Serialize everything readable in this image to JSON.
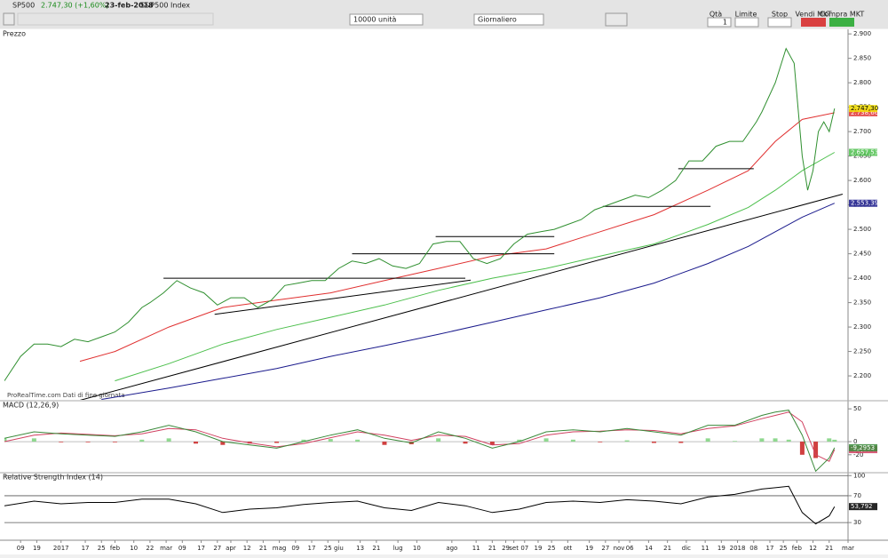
{
  "toolbar": {
    "symbol": "SP500",
    "last": "2.747,30 (+1,60%)",
    "date": "23-feb-2018",
    "name": "S&P500 Index",
    "units": "10000 unità",
    "period": "Giornaliero",
    "qty_label": "Qtà",
    "qty": "1",
    "limit": "Limite",
    "stop": "Stop",
    "sell": "Vendi MKT",
    "buy": "Compra MKT"
  },
  "chart_data": [
    {
      "type": "line",
      "title": "Prezzo",
      "source": "ProRealTime.com  Dati di fine giornata",
      "xlim": [
        -21,
        292
      ],
      "xticks": [
        {
          "value": -15,
          "label": "09"
        },
        {
          "value": -9,
          "label": "19"
        },
        {
          "value": 0,
          "label": "2017"
        },
        {
          "value": 9,
          "label": "17"
        },
        {
          "value": 15,
          "label": "25"
        },
        {
          "value": 20,
          "label": "feb"
        },
        {
          "value": 27,
          "label": "10"
        },
        {
          "value": 33,
          "label": "22"
        },
        {
          "value": 39,
          "label": "mar"
        },
        {
          "value": 45,
          "label": "09"
        },
        {
          "value": 52,
          "label": "17"
        },
        {
          "value": 58,
          "label": "27"
        },
        {
          "value": 63,
          "label": "apr"
        },
        {
          "value": 69,
          "label": "12"
        },
        {
          "value": 75,
          "label": "21"
        },
        {
          "value": 81,
          "label": "mag"
        },
        {
          "value": 87,
          "label": "09"
        },
        {
          "value": 93,
          "label": "17"
        },
        {
          "value": 99,
          "label": "25"
        },
        {
          "value": 103,
          "label": "giu"
        },
        {
          "value": 111,
          "label": "13"
        },
        {
          "value": 117,
          "label": "21"
        },
        {
          "value": 125,
          "label": "lug"
        },
        {
          "value": 132,
          "label": "10"
        },
        {
          "value": 145,
          "label": "ago"
        },
        {
          "value": 154,
          "label": "11"
        },
        {
          "value": 160,
          "label": "21"
        },
        {
          "value": 165,
          "label": "29"
        },
        {
          "value": 168,
          "label": "set"
        },
        {
          "value": 172,
          "label": "07"
        },
        {
          "value": 177,
          "label": "19"
        },
        {
          "value": 182,
          "label": "25"
        },
        {
          "value": 188,
          "label": "ott"
        },
        {
          "value": 196,
          "label": "19"
        },
        {
          "value": 202,
          "label": "27"
        },
        {
          "value": 207,
          "label": "nov"
        },
        {
          "value": 211,
          "label": "06"
        },
        {
          "value": 218,
          "label": "14"
        },
        {
          "value": 225,
          "label": "21"
        },
        {
          "value": 232,
          "label": "dic"
        },
        {
          "value": 239,
          "label": "11"
        },
        {
          "value": 245,
          "label": "19"
        },
        {
          "value": 251,
          "label": "2018"
        },
        {
          "value": 257,
          "label": "08"
        },
        {
          "value": 263,
          "label": "17"
        },
        {
          "value": 268,
          "label": "25"
        },
        {
          "value": 273,
          "label": "feb"
        },
        {
          "value": 279,
          "label": "12"
        },
        {
          "value": 285,
          "label": "21"
        },
        {
          "value": 292,
          "label": "mar"
        }
      ],
      "ylim": [
        2151,
        2893
      ],
      "yticks": [
        {
          "value": 2900,
          "label": "2.900"
        },
        {
          "value": 2850,
          "label": "2.850"
        },
        {
          "value": 2800,
          "label": "2.800"
        },
        {
          "value": 2750,
          "label": "2.750"
        },
        {
          "value": 2700,
          "label": "2.700"
        },
        {
          "value": 2650,
          "label": "2.650"
        },
        {
          "value": 2600,
          "label": "2.600"
        },
        {
          "value": 2550,
          "label": "2.550"
        },
        {
          "value": 2500,
          "label": "2.500"
        },
        {
          "value": 2450,
          "label": "2.450"
        },
        {
          "value": 2400,
          "label": "2.400"
        },
        {
          "value": 2350,
          "label": "2.350"
        },
        {
          "value": 2300,
          "label": "2.300"
        },
        {
          "value": 2250,
          "label": "2.250"
        },
        {
          "value": 2200,
          "label": "2.200"
        }
      ],
      "series": [
        {
          "color": "#1a1a8c",
          "x": [
            15,
            40,
            60,
            80,
            100,
            120,
            140,
            160,
            180,
            200,
            220,
            240,
            255,
            265,
            275,
            287
          ],
          "values": [
            2152,
            2175,
            2195,
            2215,
            2240,
            2262,
            2285,
            2310,
            2335,
            2360,
            2390,
            2430,
            2465,
            2495,
            2525,
            2553.39
          ],
          "last_label": "2.553,39"
        },
        {
          "color": "#4cbf4c",
          "x": [
            20,
            40,
            60,
            80,
            100,
            120,
            140,
            160,
            180,
            200,
            220,
            240,
            255,
            265,
            275,
            287
          ],
          "values": [
            2190,
            2225,
            2265,
            2295,
            2320,
            2345,
            2375,
            2400,
            2420,
            2445,
            2470,
            2510,
            2545,
            2580,
            2620,
            2657.53
          ],
          "last_label": "2.657,53"
        },
        {
          "color": "#e03030",
          "x": [
            7,
            20,
            40,
            60,
            80,
            100,
            120,
            140,
            160,
            180,
            200,
            220,
            240,
            255,
            265,
            275,
            287
          ],
          "values": [
            2230,
            2250,
            2300,
            2340,
            2355,
            2370,
            2395,
            2420,
            2445,
            2460,
            2495,
            2530,
            2580,
            2620,
            2680,
            2725,
            2738.66
          ],
          "last_label": "2.738,66"
        },
        {
          "color": "#000000",
          "x": [
            7,
            290
          ],
          "values": [
            2150,
            2572
          ]
        },
        {
          "color": "#000000",
          "x": [
            38,
            150
          ],
          "values": [
            2400,
            2400
          ]
        },
        {
          "color": "#000000",
          "x": [
            108,
            183
          ],
          "values": [
            2450,
            2450
          ]
        },
        {
          "color": "#000000",
          "x": [
            139,
            183
          ],
          "values": [
            2485,
            2485
          ]
        },
        {
          "color": "#000000",
          "x": [
            201,
            241
          ],
          "values": [
            2547,
            2547
          ]
        },
        {
          "color": "#000000",
          "x": [
            229,
            257
          ],
          "values": [
            2624,
            2624
          ]
        },
        {
          "color": "#000000",
          "x": [
            57,
            152
          ],
          "values": [
            2326,
            2396
          ]
        },
        {
          "color": "#2f8f2f",
          "x": [
            -21,
            -15,
            -10,
            -5,
            0,
            5,
            10,
            15,
            20,
            25,
            30,
            33,
            38,
            43,
            48,
            53,
            58,
            63,
            68,
            73,
            78,
            83,
            88,
            93,
            98,
            103,
            108,
            113,
            118,
            123,
            128,
            133,
            138,
            143,
            148,
            153,
            158,
            163,
            168,
            173,
            178,
            183,
            188,
            193,
            198,
            203,
            208,
            213,
            218,
            223,
            228,
            233,
            238,
            243,
            248,
            253,
            258,
            260,
            265,
            269,
            272,
            275,
            277,
            279,
            281,
            283,
            285,
            287
          ],
          "values": [
            2190,
            2240,
            2265,
            2265,
            2260,
            2275,
            2270,
            2280,
            2290,
            2310,
            2340,
            2350,
            2370,
            2395,
            2380,
            2370,
            2345,
            2360,
            2360,
            2340,
            2355,
            2385,
            2390,
            2395,
            2395,
            2420,
            2435,
            2430,
            2440,
            2425,
            2420,
            2430,
            2470,
            2475,
            2475,
            2440,
            2430,
            2440,
            2470,
            2490,
            2495,
            2500,
            2510,
            2520,
            2540,
            2550,
            2560,
            2570,
            2565,
            2580,
            2600,
            2640,
            2640,
            2670,
            2680,
            2680,
            2720,
            2740,
            2800,
            2870,
            2840,
            2650,
            2580,
            2620,
            2700,
            2720,
            2700,
            2747.3
          ],
          "last_label": "2.747,30"
        }
      ]
    },
    {
      "type": "line",
      "title": "MACD (12,26,9)",
      "xlim": [
        -21,
        292
      ],
      "ylim": [
        -46,
        61
      ],
      "yticks": [
        50,
        0,
        -20
      ],
      "series": [
        {
          "color": "#8fd88f",
          "style": "histogram",
          "x": [
            -21,
            -10,
            0,
            10,
            20,
            30,
            40,
            50,
            60,
            70,
            80,
            90,
            100,
            110,
            120,
            130,
            140,
            150,
            160,
            170,
            180,
            190,
            200,
            210,
            220,
            230,
            240,
            250,
            260,
            265,
            270,
            275,
            280,
            285,
            287
          ],
          "values": [
            5,
            5,
            -1,
            -1,
            -1,
            3,
            5,
            -3,
            -5,
            -3,
            -2,
            3,
            4,
            3,
            -5,
            -4,
            5,
            -3,
            -5,
            3,
            5,
            3,
            -1,
            2,
            -2,
            -2,
            5,
            1,
            5,
            5,
            3,
            -20,
            -25,
            5,
            2.9
          ]
        },
        {
          "color": "#d04060",
          "x": [
            -21,
            -10,
            0,
            10,
            20,
            30,
            40,
            50,
            60,
            70,
            80,
            90,
            100,
            110,
            120,
            130,
            140,
            150,
            160,
            170,
            180,
            190,
            200,
            210,
            220,
            230,
            240,
            250,
            260,
            265,
            270,
            275,
            280,
            285,
            287
          ],
          "values": [
            0,
            10,
            13,
            11,
            9,
            12,
            20,
            18,
            5,
            -2,
            -8,
            -3,
            6,
            15,
            10,
            2,
            10,
            8,
            -5,
            -3,
            10,
            15,
            16,
            18,
            17,
            12,
            20,
            24,
            35,
            40,
            45,
            30,
            -20,
            -30,
            -12.194
          ],
          "last_label": "-12,194"
        },
        {
          "color": "#3a8a3a",
          "x": [
            -21,
            -10,
            0,
            10,
            20,
            30,
            40,
            50,
            60,
            70,
            80,
            90,
            100,
            110,
            120,
            130,
            140,
            150,
            160,
            170,
            180,
            190,
            200,
            210,
            220,
            230,
            240,
            250,
            260,
            265,
            270,
            275,
            280,
            285,
            287
          ],
          "values": [
            5,
            15,
            12,
            10,
            8,
            15,
            25,
            15,
            0,
            -5,
            -10,
            0,
            10,
            18,
            5,
            -2,
            15,
            5,
            -10,
            0,
            15,
            18,
            15,
            20,
            15,
            10,
            25,
            25,
            40,
            45,
            48,
            10,
            -45,
            -25,
            -9.2953
          ],
          "last_label": "-9,2953"
        }
      ]
    },
    {
      "type": "line",
      "title": "Relative Strength Index (14)",
      "xlim": [
        -21,
        292
      ],
      "ylim": [
        5,
        103
      ],
      "yticks": [
        100,
        70,
        30
      ],
      "grid": true,
      "series": [
        {
          "color": "#000000",
          "x": [
            -21,
            -10,
            0,
            10,
            20,
            30,
            40,
            50,
            60,
            70,
            80,
            90,
            100,
            110,
            120,
            130,
            140,
            150,
            160,
            170,
            180,
            190,
            200,
            210,
            220,
            230,
            240,
            250,
            260,
            265,
            270,
            275,
            280,
            285,
            287
          ],
          "values": [
            55,
            62,
            58,
            60,
            60,
            65,
            65,
            58,
            45,
            50,
            52,
            57,
            60,
            62,
            52,
            48,
            60,
            55,
            45,
            50,
            60,
            62,
            60,
            64,
            62,
            58,
            68,
            72,
            80,
            82,
            84,
            45,
            28,
            40,
            53.792
          ],
          "last_label": "53,792"
        }
      ]
    }
  ]
}
